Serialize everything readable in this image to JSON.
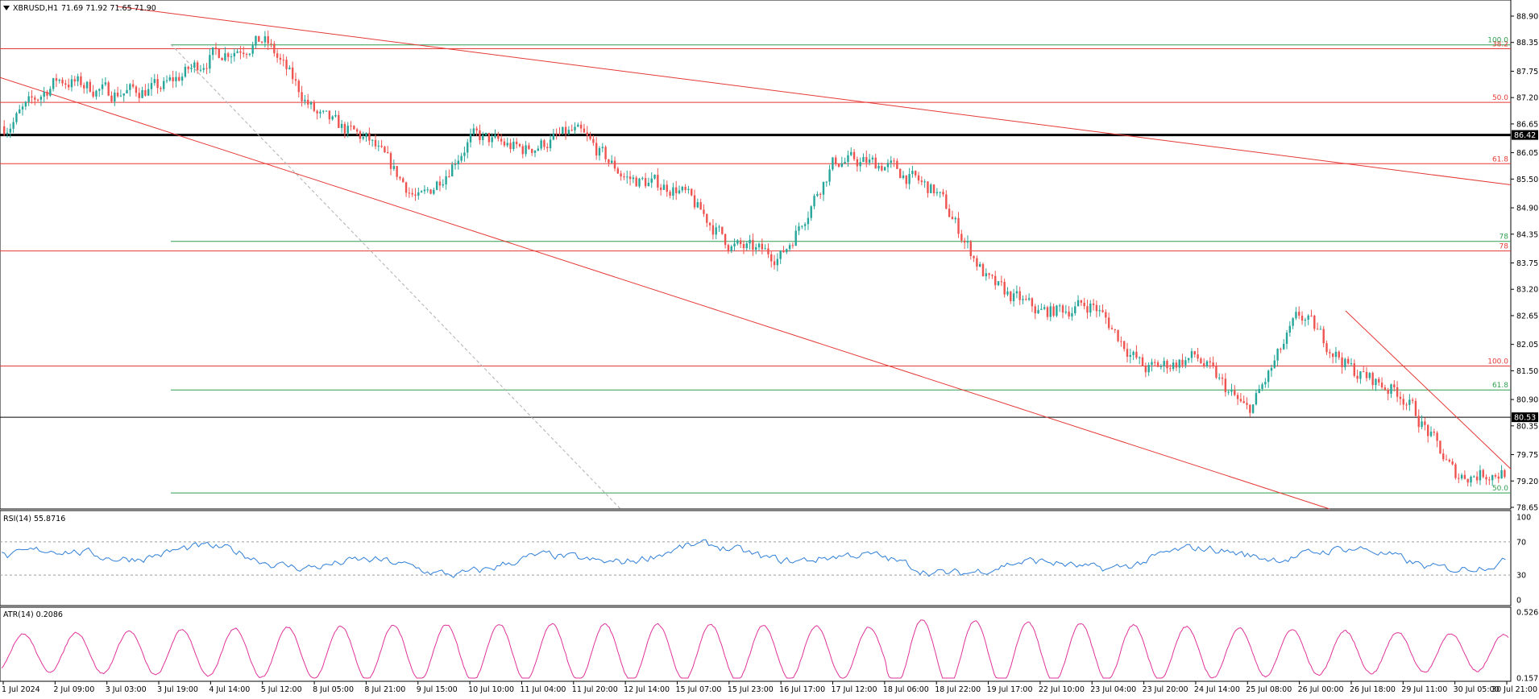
{
  "header": {
    "symbol_timeframe": "XBRUSD,H1",
    "ohlc": "71.69 71.92 71.65 71.90"
  },
  "price_axis": {
    "ticks": [
      "88.90",
      "88.35",
      "87.75",
      "87.20",
      "86.65",
      "86.05",
      "85.50",
      "84.90",
      "84.35",
      "83.75",
      "83.20",
      "82.65",
      "82.05",
      "81.50",
      "80.90",
      "80.35",
      "79.75",
      "79.20",
      "78.65"
    ],
    "tick_values": [
      88.9,
      88.35,
      87.75,
      87.2,
      86.65,
      86.05,
      85.5,
      84.9,
      84.35,
      83.75,
      83.2,
      82.65,
      82.05,
      81.5,
      80.9,
      80.35,
      79.75,
      79.2,
      78.65
    ],
    "range": [
      78.65,
      88.9
    ],
    "highlight_labels": [
      {
        "text": "86.42",
        "value": 86.42,
        "color": "#000000"
      },
      {
        "text": "80.53",
        "value": 80.53,
        "color": "#000000"
      }
    ]
  },
  "time_axis": {
    "labels": [
      "1 Jul 2024",
      "2 Jul 09:00",
      "3 Jul 03:00",
      "3 Jul 19:00",
      "4 Jul 14:00",
      "5 Jul 12:00",
      "8 Jul 05:00",
      "8 Jul 21:00",
      "9 Jul 15:00",
      "10 Jul 10:00",
      "11 Jul 04:00",
      "11 Jul 20:00",
      "12 Jul 14:00",
      "15 Jul 07:00",
      "15 Jul 23:00",
      "16 Jul 17:00",
      "17 Jul 12:00",
      "18 Jul 06:00",
      "18 Jul 22:00",
      "19 Jul 17:00",
      "22 Jul 10:00",
      "23 Jul 04:00",
      "23 Jul 20:00",
      "24 Jul 14:00",
      "25 Jul 08:00",
      "26 Jul 00:00",
      "26 Jul 18:00",
      "29 Jul 11:00",
      "30 Jul 05:00",
      "30 Jul 21:00"
    ]
  },
  "levels": {
    "horizontal": [
      {
        "value": 86.42,
        "color": "#000000",
        "width": 3
      },
      {
        "value": 80.53,
        "color": "#000000",
        "width": 1
      }
    ],
    "fib_red": [
      {
        "value": 88.22,
        "label": "38.2"
      },
      {
        "value": 87.1,
        "label": "50.0"
      },
      {
        "value": 85.82,
        "label": "61.8"
      },
      {
        "value": 84.0,
        "label": "78"
      },
      {
        "value": 81.6,
        "label": "100.0"
      }
    ],
    "fib_green": [
      {
        "value": 88.3,
        "label": "100.0"
      },
      {
        "value": 84.2,
        "label": "78"
      },
      {
        "value": 81.1,
        "label": "61.8"
      },
      {
        "value": 78.95,
        "label": "50.0"
      }
    ]
  },
  "rsi": {
    "label": "RSI(14) 55.8716",
    "ticks": [
      "100",
      "70",
      "30",
      "0"
    ],
    "tick_values": [
      100,
      70,
      30,
      0
    ]
  },
  "atr": {
    "label": "ATR(14) 0.2086",
    "ticks": [
      "0.5268",
      "0.1577"
    ],
    "range": [
      0.1577,
      0.5268
    ]
  },
  "colors": {
    "bull": "#26a69a",
    "bear": "#ef5350",
    "fib_red": "#e53935",
    "fib_green": "#2e9e4f",
    "rsi_line": "#2f7fd8",
    "atr_line": "#e0339a",
    "trend": "#e53935"
  },
  "chart_data": [
    {
      "type": "candlestick",
      "title": "XBRUSD,H1",
      "ylim": [
        78.65,
        88.9
      ],
      "x": [
        "1 Jul 2024",
        "2 Jul 09:00",
        "3 Jul 03:00",
        "3 Jul 19:00",
        "4 Jul 14:00",
        "5 Jul 12:00",
        "8 Jul 05:00",
        "8 Jul 21:00",
        "9 Jul 15:00",
        "10 Jul 10:00",
        "11 Jul 04:00",
        "11 Jul 20:00",
        "12 Jul 14:00",
        "15 Jul 07:00",
        "15 Jul 23:00",
        "16 Jul 17:00",
        "17 Jul 12:00",
        "18 Jul 06:00",
        "18 Jul 22:00",
        "19 Jul 17:00",
        "22 Jul 10:00",
        "23 Jul 04:00",
        "23 Jul 20:00",
        "24 Jul 14:00",
        "25 Jul 08:00",
        "26 Jul 00:00",
        "26 Jul 18:00",
        "29 Jul 11:00",
        "30 Jul 05:00",
        "30 Jul 21:00"
      ],
      "close_path": [
        86.6,
        87.6,
        87.3,
        87.4,
        88.1,
        88.4,
        86.8,
        86.3,
        85.0,
        86.4,
        86.1,
        86.5,
        85.5,
        85.3,
        84.1,
        83.9,
        85.9,
        85.8,
        85.2,
        83.3,
        82.7,
        82.9,
        81.5,
        81.8,
        80.6,
        82.7,
        81.5,
        81.0,
        79.3,
        79.4
      ]
    },
    {
      "type": "line",
      "title": "RSI(14)",
      "ylim": [
        0,
        100
      ]
    },
    {
      "type": "line",
      "title": "ATR(14)",
      "ylim": [
        0.1577,
        0.5268
      ]
    }
  ]
}
